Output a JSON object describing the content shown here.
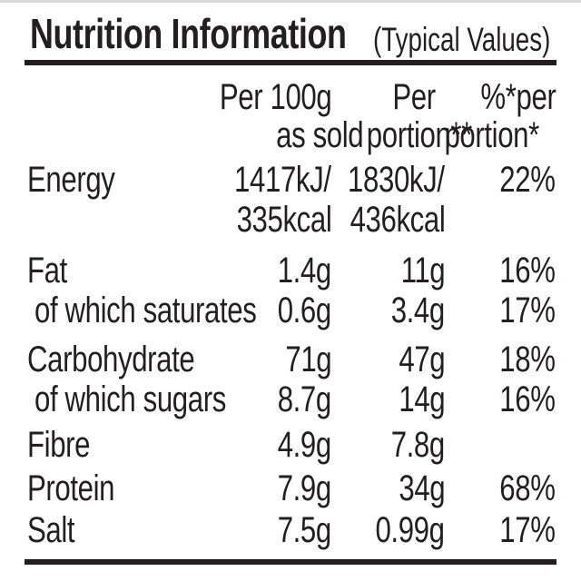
{
  "title": {
    "main": "Nutrition Information",
    "qualifier": "(Typical Values)"
  },
  "header": {
    "col_per100": {
      "line1": "Per 100g",
      "line2": "as sold"
    },
    "col_portion": {
      "line1": "Per",
      "line2": "portion**"
    },
    "col_percent": {
      "line1": "%*per",
      "line2": "portion*"
    }
  },
  "colors": {
    "text": "#231f20",
    "background": "#ffffff",
    "rule": "#231f20",
    "top_edge": "#d9d9d9"
  },
  "rows": [
    {
      "label": "Energy",
      "per100_line1": "1417kJ/",
      "per100_line2": "335kcal",
      "portion_line1": "1830kJ/",
      "portion_line2": "436kcal",
      "percent": "22%"
    },
    {
      "label": "Fat",
      "per100": "1.4g",
      "portion": "11g",
      "percent": "16%"
    },
    {
      "label": "of which saturates",
      "per100": "0.6g",
      "portion": "3.4g",
      "percent": "17%"
    },
    {
      "label": "Carbohydrate",
      "per100": "71g",
      "portion": "47g",
      "percent": "18%"
    },
    {
      "label": "of which sugars",
      "per100": "8.7g",
      "portion": "14g",
      "percent": "16%"
    },
    {
      "label": "Fibre",
      "per100": "4.9g",
      "portion": "7.8g",
      "percent": ""
    },
    {
      "label": "Protein",
      "per100": "7.9g",
      "portion": "34g",
      "percent": "68%"
    },
    {
      "label": "Salt",
      "per100": "7.5g",
      "portion": "0.99g",
      "percent": "17%"
    }
  ]
}
